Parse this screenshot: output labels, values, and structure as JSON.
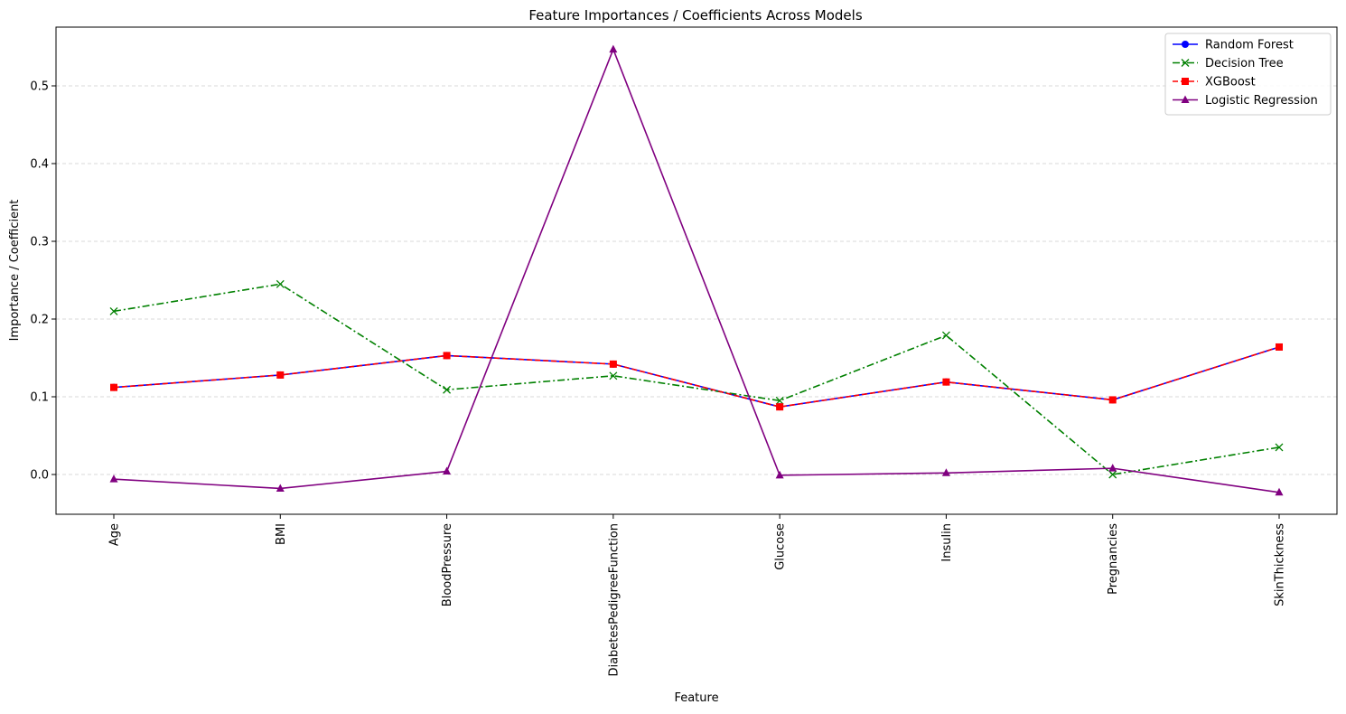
{
  "chart_data": {
    "type": "line",
    "title": "Feature Importances / Coefficients Across Models",
    "xlabel": "Feature",
    "ylabel": "Importance / Coefficient",
    "categories": [
      "Age",
      "BMI",
      "BloodPressure",
      "DiabetesPedigreeFunction",
      "Glucose",
      "Insulin",
      "Pregnancies",
      "SkinThickness"
    ],
    "ylim": [
      -0.05,
      0.575
    ],
    "yticks": [
      "0.0",
      "0.1",
      "0.2",
      "0.3",
      "0.4",
      "0.5"
    ],
    "ytick_values": [
      0.0,
      0.1,
      0.2,
      0.3,
      0.4,
      0.5
    ],
    "grid": "horizontal dashed",
    "legend_position": "top-right",
    "series": [
      {
        "name": "Random Forest",
        "values": [
          0.112,
          0.128,
          0.153,
          0.142,
          0.087,
          0.119,
          0.096,
          0.164
        ],
        "color": "#0000ff",
        "marker": "circle",
        "dash": "solid"
      },
      {
        "name": "Decision Tree",
        "values": [
          0.21,
          0.245,
          0.109,
          0.127,
          0.095,
          0.179,
          0.0,
          0.035
        ],
        "color": "#008000",
        "marker": "x",
        "dash": "dashdot"
      },
      {
        "name": "XGBoost",
        "values": [
          0.112,
          0.128,
          0.153,
          0.142,
          0.087,
          0.119,
          0.096,
          0.164
        ],
        "color": "#ff0000",
        "marker": "square",
        "dash": "dashed"
      },
      {
        "name": "Logistic Regression",
        "values": [
          -0.006,
          -0.018,
          0.004,
          0.547,
          -0.001,
          0.002,
          0.008,
          -0.023
        ],
        "color": "#800080",
        "marker": "triangle",
        "dash": "solid"
      }
    ]
  }
}
